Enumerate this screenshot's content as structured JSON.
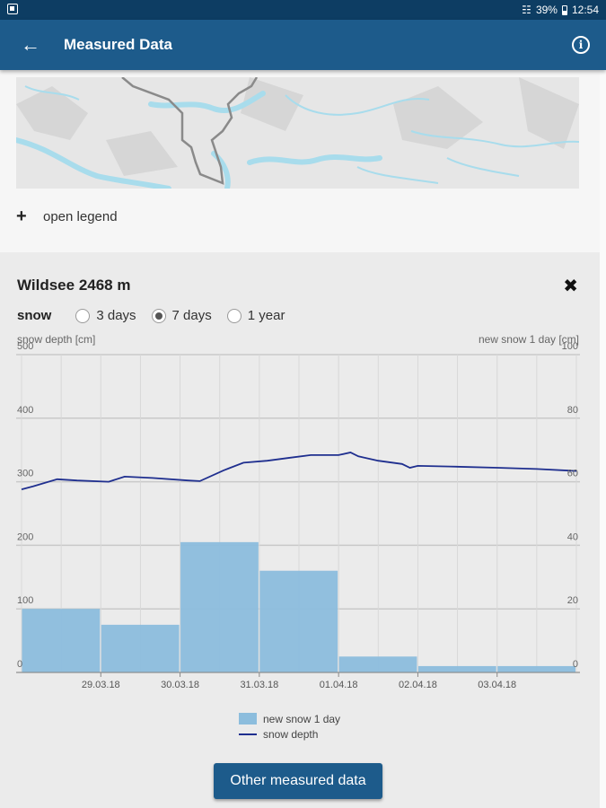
{
  "status_bar": {
    "battery": "39%",
    "time": "12:54"
  },
  "app_bar": {
    "title": "Measured Data",
    "back_icon": "arrow-left-icon",
    "info_icon": "info-icon"
  },
  "legend_toggle": {
    "label": "open legend"
  },
  "station_panel": {
    "station": "Wildsee 2468 m",
    "parameter": "snow",
    "ranges": [
      {
        "label": "3 days",
        "selected": false
      },
      {
        "label": "7 days",
        "selected": true
      },
      {
        "label": "1 year",
        "selected": false
      }
    ],
    "left_axis_title": "snow depth [cm]",
    "right_axis_title": "new snow 1 day [cm]",
    "other_button": "Other measured data"
  },
  "colors": {
    "app_bar": "#1d5b8b",
    "bar": "#8cbddd",
    "line": "#1f2f8f"
  },
  "chart_data": {
    "type": "bar",
    "x_ticks": [
      "29.03.18",
      "30.03.18",
      "31.03.18",
      "01.04.18",
      "02.04.18",
      "03.04.18"
    ],
    "left_axis": {
      "label": "snow depth [cm]",
      "ylim": [
        0,
        500
      ],
      "ticks": [
        0,
        100,
        200,
        300,
        400,
        500
      ]
    },
    "right_axis": {
      "label": "new snow 1 day [cm]",
      "ylim": [
        0,
        100
      ],
      "ticks": [
        0,
        20,
        40,
        60,
        80,
        100
      ]
    },
    "legend": [
      "new snow 1 day",
      "snow depth"
    ],
    "grid": true,
    "series": [
      {
        "name": "new snow 1 day",
        "type": "bar",
        "axis": "right",
        "values": [
          20,
          15,
          41,
          32,
          5,
          2,
          2
        ]
      },
      {
        "name": "snow depth",
        "type": "line",
        "axis": "left",
        "points": [
          [
            0,
            288
          ],
          [
            0.15,
            293
          ],
          [
            0.45,
            304
          ],
          [
            0.7,
            302
          ],
          [
            1.1,
            300
          ],
          [
            1.3,
            308
          ],
          [
            1.65,
            306
          ],
          [
            2.1,
            302
          ],
          [
            2.25,
            301
          ],
          [
            2.55,
            318
          ],
          [
            2.8,
            330
          ],
          [
            3.1,
            333
          ],
          [
            3.4,
            338
          ],
          [
            3.65,
            342
          ],
          [
            4.0,
            342
          ],
          [
            4.15,
            346
          ],
          [
            4.25,
            340
          ],
          [
            4.5,
            333
          ],
          [
            4.8,
            328
          ],
          [
            4.9,
            322
          ],
          [
            5.0,
            325
          ],
          [
            5.4,
            324
          ],
          [
            6.0,
            322
          ],
          [
            6.5,
            320
          ],
          [
            7.0,
            317
          ]
        ]
      }
    ]
  }
}
